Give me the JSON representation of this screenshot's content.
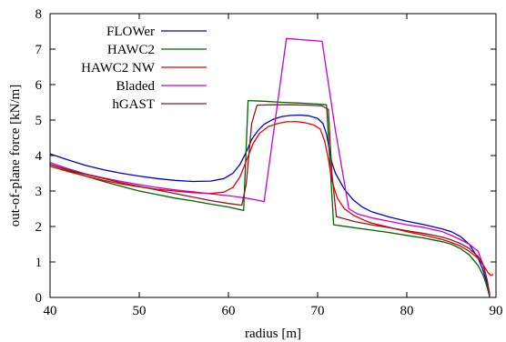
{
  "chart_data": {
    "type": "line",
    "title": "",
    "xlabel": "radius [m]",
    "ylabel": "out-of-plane force [kN/m]",
    "xlim": [
      40,
      90
    ],
    "ylim": [
      0,
      8
    ],
    "xticks": [
      40,
      50,
      60,
      70,
      80,
      90
    ],
    "yticks": [
      0,
      1,
      2,
      3,
      4,
      5,
      6,
      7,
      8
    ],
    "grid": false,
    "legend_position": "top-left",
    "series": [
      {
        "name": "FLOWer",
        "color": "#0000cc",
        "points": [
          [
            40,
            4.05
          ],
          [
            42,
            3.88
          ],
          [
            44,
            3.72
          ],
          [
            46,
            3.6
          ],
          [
            48,
            3.5
          ],
          [
            50,
            3.42
          ],
          [
            52,
            3.35
          ],
          [
            54,
            3.3
          ],
          [
            56,
            3.27
          ],
          [
            58,
            3.28
          ],
          [
            59.5,
            3.35
          ],
          [
            60.5,
            3.5
          ],
          [
            61.3,
            3.75
          ],
          [
            62,
            4.1
          ],
          [
            62.6,
            4.45
          ],
          [
            63.3,
            4.7
          ],
          [
            64,
            4.88
          ],
          [
            65,
            5.02
          ],
          [
            66,
            5.1
          ],
          [
            67,
            5.13
          ],
          [
            68,
            5.14
          ],
          [
            69,
            5.12
          ],
          [
            70,
            5.05
          ],
          [
            70.6,
            4.9
          ],
          [
            71,
            4.6
          ],
          [
            71.3,
            4.2
          ],
          [
            71.6,
            3.8
          ],
          [
            72,
            3.5
          ],
          [
            73,
            3.05
          ],
          [
            74,
            2.75
          ],
          [
            75,
            2.55
          ],
          [
            76,
            2.42
          ],
          [
            78,
            2.27
          ],
          [
            80,
            2.15
          ],
          [
            82,
            2.05
          ],
          [
            84,
            1.93
          ],
          [
            85,
            1.85
          ],
          [
            86,
            1.72
          ],
          [
            87,
            1.5
          ],
          [
            88,
            1.1
          ],
          [
            88.5,
            0.8
          ],
          [
            89,
            0.4
          ],
          [
            89.3,
            0.05
          ]
        ]
      },
      {
        "name": "HAWC2",
        "color": "#006400",
        "points": [
          [
            40,
            3.75
          ],
          [
            42,
            3.58
          ],
          [
            44,
            3.42
          ],
          [
            46,
            3.27
          ],
          [
            48,
            3.13
          ],
          [
            50,
            3.0
          ],
          [
            52,
            2.9
          ],
          [
            54,
            2.8
          ],
          [
            56,
            2.72
          ],
          [
            58,
            2.63
          ],
          [
            60,
            2.55
          ],
          [
            61.7,
            2.45
          ],
          [
            62.2,
            5.55
          ],
          [
            64,
            5.53
          ],
          [
            66,
            5.5
          ],
          [
            68,
            5.48
          ],
          [
            70,
            5.45
          ],
          [
            71,
            5.43
          ],
          [
            71.8,
            2.05
          ],
          [
            74,
            1.97
          ],
          [
            76,
            1.9
          ],
          [
            78,
            1.83
          ],
          [
            80,
            1.75
          ],
          [
            82,
            1.67
          ],
          [
            84,
            1.57
          ],
          [
            85,
            1.5
          ],
          [
            86,
            1.38
          ],
          [
            87,
            1.2
          ],
          [
            88,
            0.9
          ],
          [
            88.6,
            0.6
          ],
          [
            89,
            0.3
          ],
          [
            89.3,
            0.0
          ]
        ]
      },
      {
        "name": "HAWC2 NW",
        "color": "#ee0000",
        "points": [
          [
            40,
            3.7
          ],
          [
            42,
            3.55
          ],
          [
            44,
            3.42
          ],
          [
            46,
            3.3
          ],
          [
            48,
            3.2
          ],
          [
            50,
            3.12
          ],
          [
            52,
            3.05
          ],
          [
            54,
            3.0
          ],
          [
            56,
            2.95
          ],
          [
            58,
            2.93
          ],
          [
            59.5,
            2.97
          ],
          [
            60.5,
            3.1
          ],
          [
            61.3,
            3.4
          ],
          [
            62,
            3.85
          ],
          [
            62.8,
            4.35
          ],
          [
            63.5,
            4.63
          ],
          [
            64.5,
            4.82
          ],
          [
            65.5,
            4.9
          ],
          [
            66.5,
            4.95
          ],
          [
            67.5,
            4.96
          ],
          [
            68.5,
            4.93
          ],
          [
            69.5,
            4.87
          ],
          [
            70.3,
            4.75
          ],
          [
            70.8,
            4.4
          ],
          [
            71.2,
            3.9
          ],
          [
            71.6,
            3.3
          ],
          [
            72.2,
            2.8
          ],
          [
            73,
            2.5
          ],
          [
            74,
            2.32
          ],
          [
            75,
            2.2
          ],
          [
            76,
            2.1
          ],
          [
            78,
            1.98
          ],
          [
            80,
            1.85
          ],
          [
            82,
            1.75
          ],
          [
            84,
            1.63
          ],
          [
            85,
            1.55
          ],
          [
            86,
            1.45
          ],
          [
            87,
            1.3
          ],
          [
            88,
            1.1
          ],
          [
            88.6,
            0.9
          ],
          [
            89.1,
            0.7
          ],
          [
            89.4,
            0.62
          ],
          [
            89.7,
            0.65
          ]
        ]
      },
      {
        "name": "Bladed",
        "color": "#cc00cc",
        "points": [
          [
            40,
            3.8
          ],
          [
            42,
            3.63
          ],
          [
            44,
            3.48
          ],
          [
            46,
            3.37
          ],
          [
            48,
            3.27
          ],
          [
            50,
            3.18
          ],
          [
            52,
            3.1
          ],
          [
            54,
            3.03
          ],
          [
            56,
            2.98
          ],
          [
            58,
            2.92
          ],
          [
            60,
            2.87
          ],
          [
            62,
            2.8
          ],
          [
            63.5,
            2.73
          ],
          [
            64,
            2.7
          ],
          [
            66.5,
            7.3
          ],
          [
            70.5,
            7.22
          ],
          [
            72,
            4.7
          ],
          [
            73.5,
            2.5
          ],
          [
            74.5,
            2.35
          ],
          [
            76,
            2.25
          ],
          [
            78,
            2.15
          ],
          [
            80,
            2.05
          ],
          [
            82,
            1.97
          ],
          [
            84,
            1.85
          ],
          [
            85,
            1.75
          ],
          [
            86,
            1.63
          ],
          [
            87,
            1.5
          ],
          [
            88,
            1.3
          ],
          [
            88.5,
            0.95
          ],
          [
            89,
            0.5
          ],
          [
            89.3,
            0.1
          ]
        ]
      },
      {
        "name": "hGAST",
        "color": "#8b1a1a",
        "points": [
          [
            40,
            3.75
          ],
          [
            42,
            3.6
          ],
          [
            44,
            3.47
          ],
          [
            46,
            3.35
          ],
          [
            48,
            3.23
          ],
          [
            50,
            3.13
          ],
          [
            52,
            3.03
          ],
          [
            54,
            2.93
          ],
          [
            56,
            2.83
          ],
          [
            58,
            2.73
          ],
          [
            60,
            2.65
          ],
          [
            61.5,
            2.6
          ],
          [
            62,
            3.2
          ],
          [
            62.6,
            4.9
          ],
          [
            63.2,
            5.42
          ],
          [
            65,
            5.43
          ],
          [
            67,
            5.43
          ],
          [
            69,
            5.42
          ],
          [
            70.5,
            5.4
          ],
          [
            71.2,
            5.3
          ],
          [
            71.6,
            3.5
          ],
          [
            72.1,
            2.28
          ],
          [
            74,
            2.15
          ],
          [
            76,
            2.05
          ],
          [
            78,
            1.97
          ],
          [
            80,
            1.88
          ],
          [
            82,
            1.8
          ],
          [
            84,
            1.7
          ],
          [
            85,
            1.62
          ],
          [
            86,
            1.52
          ],
          [
            87,
            1.38
          ],
          [
            88,
            1.15
          ],
          [
            88.6,
            0.9
          ],
          [
            89,
            0.5
          ],
          [
            89.3,
            0.05
          ]
        ]
      }
    ]
  }
}
